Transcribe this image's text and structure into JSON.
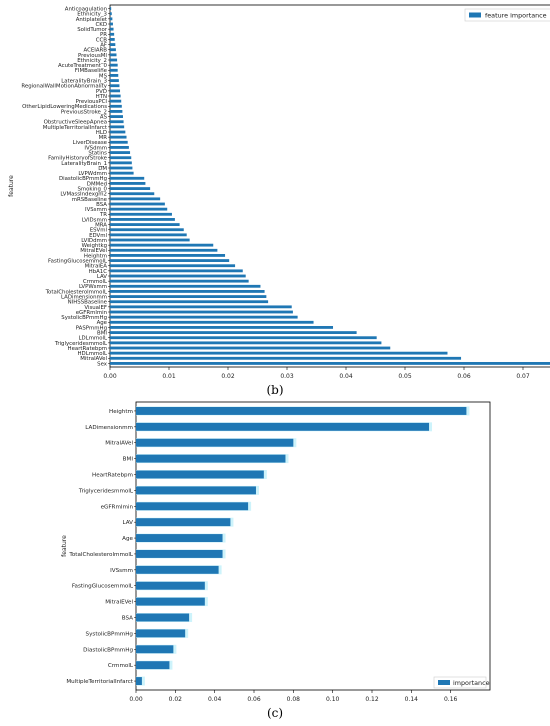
{
  "chart_data": [
    {
      "type": "bar",
      "orientation": "horizontal",
      "caption": "(b)",
      "ylabel": "feature",
      "xlabel": "",
      "legend": [
        "feature importance"
      ],
      "legend_position": "top-right",
      "xlim": [
        0,
        0.08
      ],
      "xticks": [
        "0.00",
        "0.01",
        "0.02",
        "0.03",
        "0.04",
        "0.05",
        "0.06",
        "0.07",
        "0.08"
      ],
      "grid": false,
      "color": "#1f77b4",
      "categories": [
        "Anticoagulation",
        "Ethnicity_3",
        "Antiplatelet",
        "CKD",
        "SolidTumor",
        "PR",
        "CCB",
        "AF",
        "ACEIARB",
        "PreviousMI",
        "Ethnicity_2",
        "AcuteTreatment_0",
        "FIMBaseline",
        "MS",
        "LateralityBrain_3",
        "RegionalWallMotionAbnormality",
        "PVD",
        "HTN",
        "PreviousPCI",
        "OtherLipidLoweringMedications",
        "PreviousStroke_2",
        "AS",
        "ObstructiveSleepApnea",
        "MultipleTerritorialInfarct",
        "HLD",
        "MR",
        "LiverDisease",
        "IVSdmm",
        "Statins",
        "FamilyHistoryofStroke",
        "LateralityBrain_1",
        "DM",
        "LVPWdmm",
        "DiastolicBPmmHg",
        "DMMed",
        "Smoking_0",
        "LVMassIndexgm2",
        "mRSBaseline",
        "BSA",
        "IVSsmm",
        "TR",
        "LVIDsmm",
        "MRA",
        "ESVml",
        "EDVml",
        "LVIDdmm",
        "Weightkg",
        "MitralEVel",
        "Heightm",
        "FastingGlucosemmolL",
        "MitralEA",
        "HbA1C",
        "LAV",
        "CrmmolL",
        "LVPWsmm",
        "TotalCholesterolmmolL",
        "LADimensionmm",
        "NIHSSBaseline",
        "VisualEF",
        "eGFRmlmin",
        "SystolicBPmmHg",
        "Age",
        "PASPmmHg",
        "BMI",
        "LDLmmolL",
        "TriglyceridesmmolL",
        "HeartRatebpm",
        "HDLmmolL",
        "MitralAVel",
        "Sex"
      ],
      "values": [
        0.0002,
        0.0003,
        0.0004,
        0.0005,
        0.0006,
        0.0007,
        0.0008,
        0.0009,
        0.001,
        0.0011,
        0.0012,
        0.0013,
        0.0013,
        0.0014,
        0.0015,
        0.0016,
        0.0017,
        0.0018,
        0.0019,
        0.002,
        0.0021,
        0.0022,
        0.0023,
        0.0024,
        0.0026,
        0.0028,
        0.003,
        0.0032,
        0.0034,
        0.0036,
        0.0037,
        0.0038,
        0.004,
        0.0058,
        0.006,
        0.0068,
        0.0075,
        0.0085,
        0.0093,
        0.0097,
        0.0105,
        0.011,
        0.0118,
        0.0125,
        0.013,
        0.0135,
        0.0175,
        0.0182,
        0.0195,
        0.0202,
        0.0212,
        0.0225,
        0.023,
        0.0235,
        0.0255,
        0.0262,
        0.0265,
        0.0268,
        0.0308,
        0.031,
        0.0318,
        0.0345,
        0.0378,
        0.0418,
        0.0452,
        0.046,
        0.0475,
        0.0572,
        0.0595,
        0.0785
      ]
    },
    {
      "type": "bar",
      "orientation": "horizontal",
      "caption": "(c)",
      "ylabel": "feature",
      "xlabel": "",
      "legend": [
        "importance"
      ],
      "legend_position": "bottom-right",
      "xlim": [
        0,
        0.18
      ],
      "xticks": [
        "0.00",
        "0.02",
        "0.04",
        "0.06",
        "0.08",
        "0.10",
        "0.12",
        "0.14",
        "0.16"
      ],
      "grid": false,
      "color": "#1f77b4",
      "shadow_color": "#cdf3fb",
      "categories": [
        "Heightm",
        "LADimensionmm",
        "MitralAVel",
        "BMI",
        "HeartRatebpm",
        "TriglyceridesmmolL",
        "eGFRmlmin",
        "LAV",
        "Age",
        "TotalCholesterolmmolL",
        "IVSsmm",
        "FastingGlucosemmolL",
        "MitralEVel",
        "BSA",
        "SystolicBPmmHg",
        "DiastolicBPmmHg",
        "CrmmolL",
        "MultipleTerritorialInfarct"
      ],
      "values": [
        0.168,
        0.149,
        0.08,
        0.076,
        0.065,
        0.061,
        0.057,
        0.048,
        0.044,
        0.044,
        0.042,
        0.035,
        0.035,
        0.027,
        0.025,
        0.019,
        0.017,
        0.003
      ]
    }
  ]
}
